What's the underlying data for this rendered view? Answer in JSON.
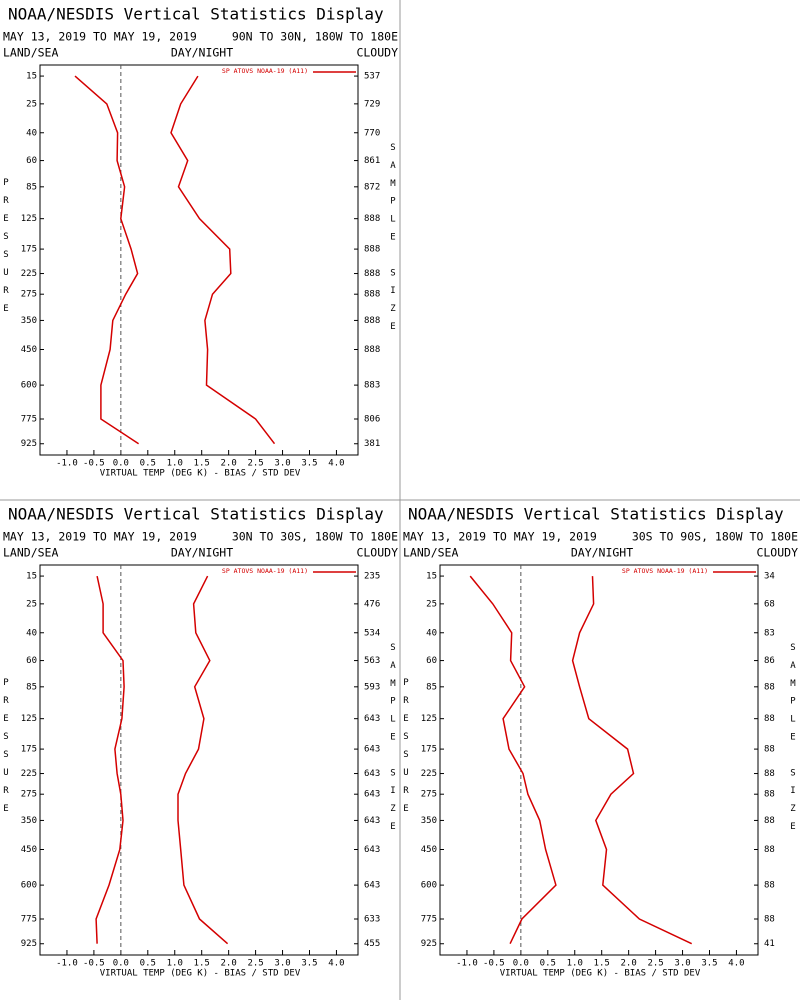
{
  "chart_data": [
    {
      "type": "line",
      "title": "NOAA/NESDIS Vertical Statistics Display",
      "date_range": "MAY 13, 2019 TO MAY 19, 2019",
      "region": "90N TO 30N, 180W TO 180E",
      "top_labels": [
        "LAND/SEA",
        "DAY/NIGHT",
        "CLOUDY"
      ],
      "ylabel": "PRESSURE",
      "y2label": "SAMPLE SIZE",
      "xlabel": "VIRTUAL TEMP (DEG K) - BIAS / STD DEV",
      "y": [
        15,
        25,
        40,
        60,
        85,
        125,
        175,
        225,
        275,
        350,
        450,
        600,
        775,
        925
      ],
      "yticks": [
        15,
        25,
        40,
        60,
        85,
        125,
        175,
        225,
        275,
        350,
        450,
        600,
        775,
        925
      ],
      "ylim": [
        12,
        1000
      ],
      "sample_size": [
        537,
        729,
        770,
        861,
        872,
        888,
        888,
        888,
        888,
        888,
        888,
        883,
        806,
        381
      ],
      "xlim": [
        -1.5,
        4.4
      ],
      "xticks": [
        {
          "value": -1,
          "label": "-1.0"
        },
        -0.5,
        {
          "value": 0,
          "label": "0.0"
        },
        0.5,
        {
          "value": 1,
          "label": "1.0"
        },
        1.5,
        {
          "value": 2,
          "label": "2.0"
        },
        2.5,
        {
          "value": 3,
          "label": "3.0"
        },
        3.5,
        {
          "value": 4,
          "label": "4.0"
        }
      ],
      "zero_line": 0,
      "series": [
        {
          "name": "SP ATOVS NOAA-19 (A11)",
          "color": "#d40000",
          "values": [
            -0.85,
            -0.26,
            -0.06,
            -0.07,
            0.07,
            0.0,
            0.19,
            0.31,
            0.09,
            -0.15,
            -0.2,
            -0.37,
            -0.37,
            0.33
          ]
        },
        {
          "color": "#d40000",
          "values": [
            1.43,
            1.11,
            0.93,
            1.24,
            1.07,
            1.46,
            2.02,
            2.04,
            1.7,
            1.56,
            1.61,
            1.59,
            2.5,
            2.85
          ]
        }
      ]
    },
    {
      "type": "line",
      "title": "NOAA/NESDIS Vertical Statistics Display",
      "date_range": "MAY 13, 2019 TO MAY 19, 2019",
      "region": "30N TO 30S, 180W TO 180E",
      "top_labels": [
        "LAND/SEA",
        "DAY/NIGHT",
        "CLOUDY"
      ],
      "ylabel": "PRESSURE",
      "y2label": "SAMPLE SIZE",
      "xlabel": "VIRTUAL TEMP (DEG K) - BIAS / STD DEV",
      "y": [
        15,
        25,
        40,
        60,
        85,
        125,
        175,
        225,
        275,
        350,
        450,
        600,
        775,
        925
      ],
      "yticks": [
        15,
        25,
        40,
        60,
        85,
        125,
        175,
        225,
        275,
        350,
        450,
        600,
        775,
        925
      ],
      "ylim": [
        12,
        1000
      ],
      "sample_size": [
        235,
        476,
        534,
        563,
        593,
        643,
        643,
        643,
        643,
        643,
        643,
        643,
        633,
        455
      ],
      "xlim": [
        -1.5,
        4.4
      ],
      "xticks": [
        {
          "value": -1,
          "label": "-1.0"
        },
        -0.5,
        {
          "value": 0,
          "label": "0.0"
        },
        0.5,
        {
          "value": 1,
          "label": "1.0"
        },
        1.5,
        {
          "value": 2,
          "label": "2.0"
        },
        2.5,
        {
          "value": 3,
          "label": "3.0"
        },
        3.5,
        {
          "value": 4,
          "label": "4.0"
        }
      ],
      "zero_line": 0,
      "series": [
        {
          "name": "SP ATOVS NOAA-19 (A11)",
          "color": "#d40000",
          "values": [
            -0.44,
            -0.33,
            -0.33,
            0.04,
            0.06,
            0.02,
            -0.11,
            -0.07,
            0.0,
            0.04,
            -0.02,
            -0.22,
            -0.46,
            -0.44
          ]
        },
        {
          "color": "#d40000",
          "values": [
            1.61,
            1.35,
            1.39,
            1.65,
            1.37,
            1.54,
            1.44,
            1.2,
            1.06,
            1.06,
            1.11,
            1.17,
            1.46,
            1.98
          ]
        }
      ]
    },
    {
      "type": "line",
      "title": "NOAA/NESDIS Vertical Statistics Display",
      "date_range": "MAY 13, 2019 TO MAY 19, 2019",
      "region": "30S TO 90S, 180W TO 180E",
      "top_labels": [
        "LAND/SEA",
        "DAY/NIGHT",
        "CLOUDY"
      ],
      "ylabel": "PRESSURE",
      "y2label": "SAMPLE SIZE",
      "xlabel": "VIRTUAL TEMP (DEG K) - BIAS / STD DEV",
      "y": [
        15,
        25,
        40,
        60,
        85,
        125,
        175,
        225,
        275,
        350,
        450,
        600,
        775,
        925
      ],
      "yticks": [
        15,
        25,
        40,
        60,
        85,
        125,
        175,
        225,
        275,
        350,
        450,
        600,
        775,
        925
      ],
      "ylim": [
        12,
        1000
      ],
      "sample_size": [
        34,
        68,
        83,
        86,
        88,
        88,
        88,
        88,
        88,
        88,
        88,
        88,
        88,
        41
      ],
      "xlim": [
        -1.5,
        4.4
      ],
      "xticks": [
        {
          "value": -1,
          "label": "-1.0"
        },
        -0.5,
        {
          "value": 0,
          "label": "0.0"
        },
        0.5,
        {
          "value": 1,
          "label": "1.0"
        },
        1.5,
        {
          "value": 2,
          "label": "2.0"
        },
        2.5,
        {
          "value": 3,
          "label": "3.0"
        },
        3.5,
        {
          "value": 4,
          "label": "4.0"
        }
      ],
      "zero_line": 0,
      "series": [
        {
          "name": "SP ATOVS NOAA-19 (A11)",
          "color": "#d40000",
          "values": [
            -0.94,
            -0.52,
            -0.17,
            -0.19,
            0.07,
            -0.33,
            -0.22,
            0.04,
            0.13,
            0.35,
            0.46,
            0.65,
            0.02,
            -0.2
          ]
        },
        {
          "color": "#d40000",
          "values": [
            1.33,
            1.35,
            1.09,
            0.96,
            1.09,
            1.26,
            1.98,
            2.09,
            1.67,
            1.39,
            1.59,
            1.52,
            2.2,
            3.17
          ]
        }
      ]
    }
  ]
}
